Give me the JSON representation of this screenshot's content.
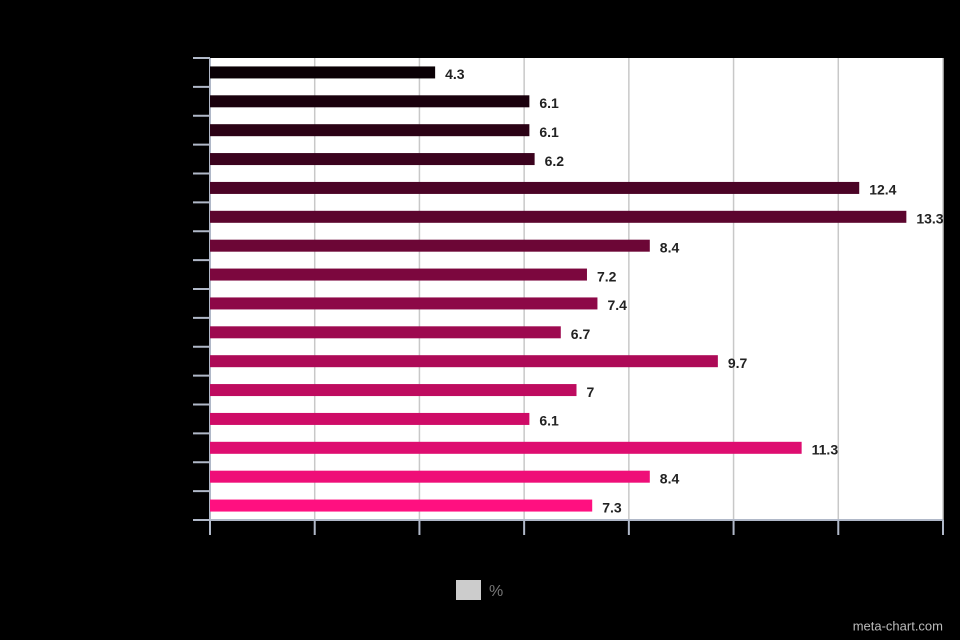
{
  "chart_data": {
    "type": "hbar",
    "categories": [
      null,
      null,
      null,
      null,
      null,
      null,
      null,
      null,
      null,
      null,
      null,
      null,
      null,
      null,
      null,
      null
    ],
    "series": [
      {
        "name": "%",
        "color": "#cccccc",
        "values": [
          4.3,
          6.1,
          6.1,
          6.2,
          12.4,
          13.3,
          8.4,
          7.2,
          7.4,
          6.7,
          9.7,
          7,
          6.1,
          11.3,
          8.4,
          7.3
        ]
      }
    ],
    "colors": [
      "#0a0005",
      "#1a010d",
      "#2b0215",
      "#3b031e",
      "#4b0426",
      "#5c052e",
      "#6c0636",
      "#7c073e",
      "#8d0847",
      "#9d094f",
      "#ad0a57",
      "#be0b5f",
      "#ce0c67",
      "#de0d70",
      "#ef0e78",
      "#ff1080"
    ],
    "xlim": [
      0,
      14
    ],
    "xticks": [
      0,
      2,
      4,
      6,
      8,
      10,
      12,
      14
    ],
    "grid": true,
    "legend": "bottom",
    "watermark": "meta-chart.com"
  }
}
